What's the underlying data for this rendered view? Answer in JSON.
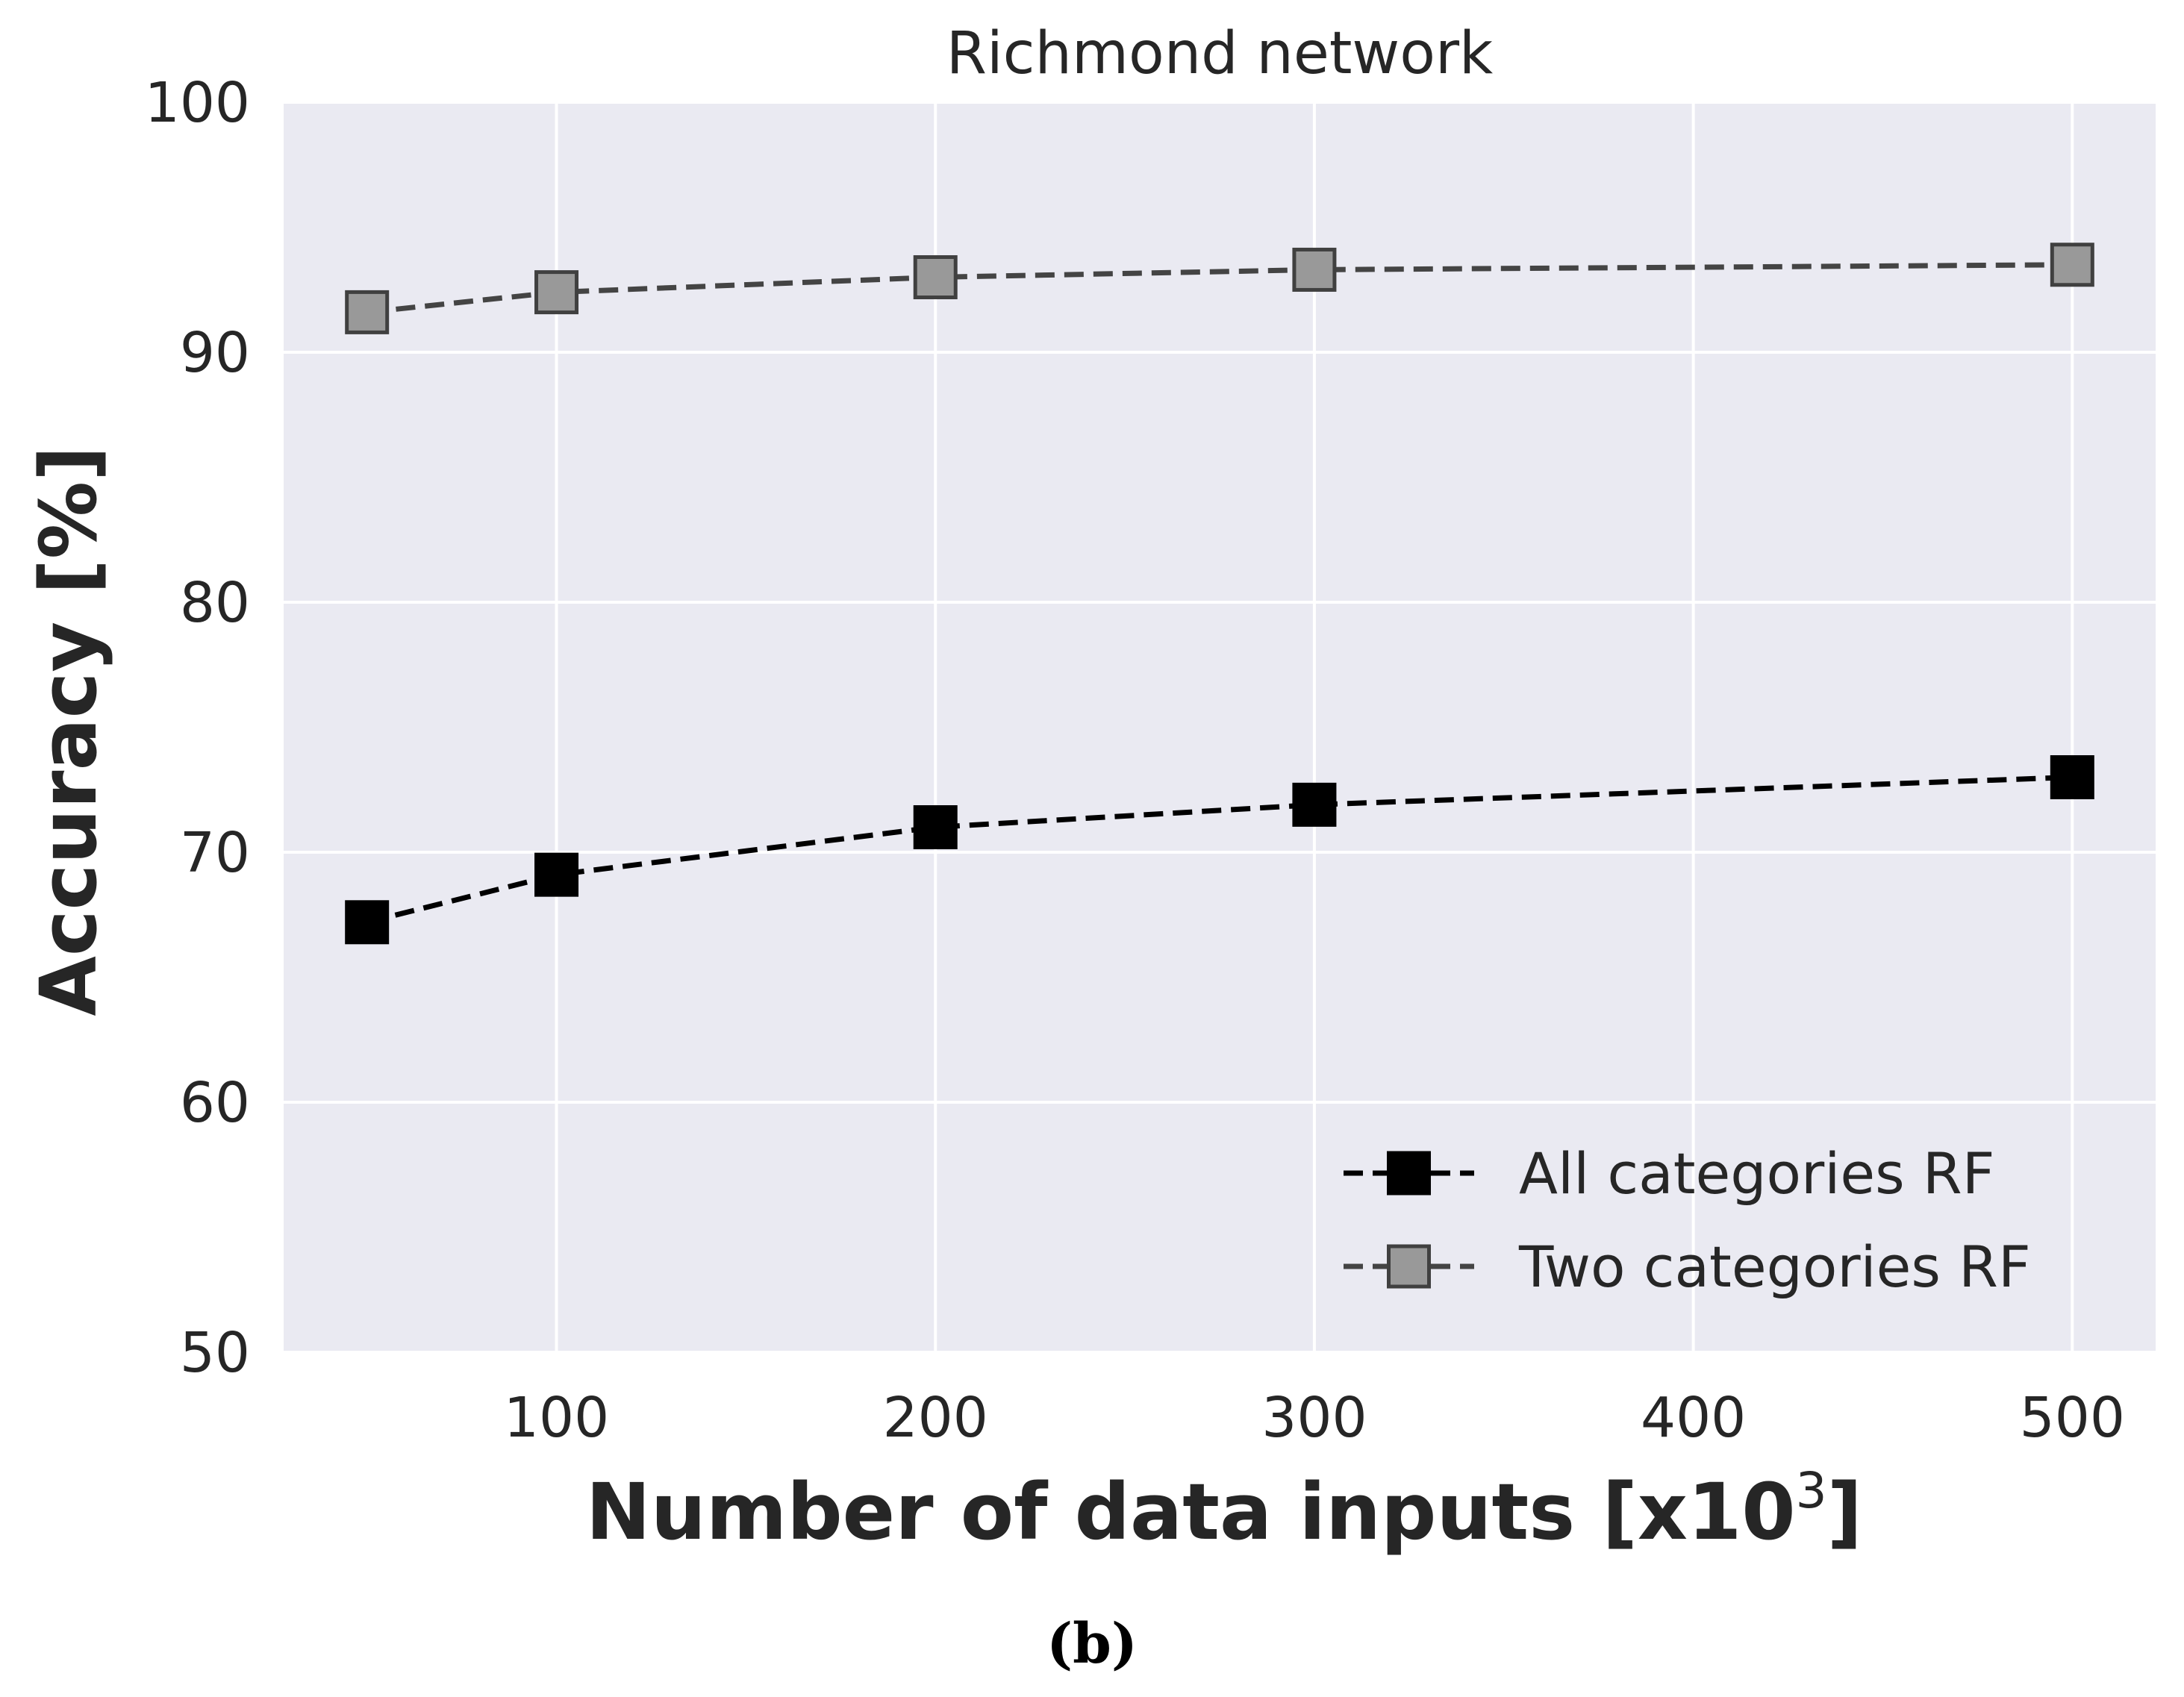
{
  "colors": {
    "plot_background": "#eaeaf2",
    "grid": "#ffffff",
    "text": "#262626",
    "series_0": "#000000",
    "series_1": "#444444",
    "series_1_marker_fill": "#999999",
    "series_1_marker_edge": "#404040"
  },
  "chart_data": {
    "type": "line",
    "title": "Richmond network",
    "xlabel": "Number of data inputs [x10",
    "xlabel_superscript": "3",
    "xlabel_end": "]",
    "ylabel": "Accuracy [%]",
    "xlim": [
      28,
      522
    ],
    "ylim": [
      50,
      100
    ],
    "xticks": [
      100,
      200,
      300,
      400,
      500
    ],
    "xtick_labels": [
      "100",
      "200",
      "300",
      "400",
      "500"
    ],
    "yticks": [
      50,
      60,
      70,
      80,
      90,
      100
    ],
    "ytick_labels": [
      "50",
      "60",
      "70",
      "80",
      "90",
      "100"
    ],
    "grid": true,
    "legend_position": "lower-right",
    "series": [
      {
        "name": "All categories RF",
        "x": [
          50,
          100,
          200,
          300,
          500
        ],
        "y": [
          67.2,
          69.1,
          71.0,
          71.9,
          73.0
        ],
        "marker": "square-filled",
        "linestyle": "dashed"
      },
      {
        "name": "Two categories RF",
        "x": [
          50,
          100,
          200,
          300,
          500
        ],
        "y": [
          91.6,
          92.4,
          93.0,
          93.3,
          93.5
        ],
        "marker": "square-gray",
        "linestyle": "dashed"
      }
    ]
  },
  "caption": "(b)"
}
